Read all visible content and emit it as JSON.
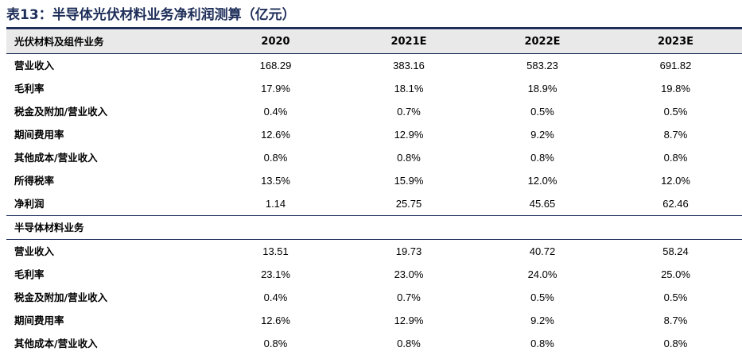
{
  "title": "表13：半导体光伏材料业务净利润测算（亿元）",
  "header": {
    "label": "光伏材料及组件业务",
    "years": [
      "2020",
      "2021E",
      "2022E",
      "2023E"
    ]
  },
  "pv_rows": [
    {
      "label": "营业收入",
      "values": [
        "168.29",
        "383.16",
        "583.23",
        "691.82"
      ]
    },
    {
      "label": "毛利率",
      "values": [
        "17.9%",
        "18.1%",
        "18.9%",
        "19.8%"
      ]
    },
    {
      "label": "税金及附加/营业收入",
      "values": [
        "0.4%",
        "0.7%",
        "0.5%",
        "0.5%"
      ]
    },
    {
      "label": "期间费用率",
      "values": [
        "12.6%",
        "12.9%",
        "9.2%",
        "8.7%"
      ]
    },
    {
      "label": "其他成本/营业收入",
      "values": [
        "0.8%",
        "0.8%",
        "0.8%",
        "0.8%"
      ]
    },
    {
      "label": "所得税率",
      "values": [
        "13.5%",
        "15.9%",
        "12.0%",
        "12.0%"
      ]
    },
    {
      "label": "净利润",
      "values": [
        "1.14",
        "25.75",
        "45.65",
        "62.46"
      ]
    }
  ],
  "semi_section_label": "半导体材料业务",
  "semi_rows": [
    {
      "label": "营业收入",
      "values": [
        "13.51",
        "19.73",
        "40.72",
        "58.24"
      ]
    },
    {
      "label": "毛利率",
      "values": [
        "23.1%",
        "23.0%",
        "24.0%",
        "25.0%"
      ]
    },
    {
      "label": "税金及附加/营业收入",
      "values": [
        "0.4%",
        "0.7%",
        "0.5%",
        "0.5%"
      ]
    },
    {
      "label": "期间费用率",
      "values": [
        "12.6%",
        "12.9%",
        "9.2%",
        "8.7%"
      ]
    },
    {
      "label": "其他成本/营业收入",
      "values": [
        "0.8%",
        "0.8%",
        "0.8%",
        "0.8%"
      ]
    }
  ]
}
